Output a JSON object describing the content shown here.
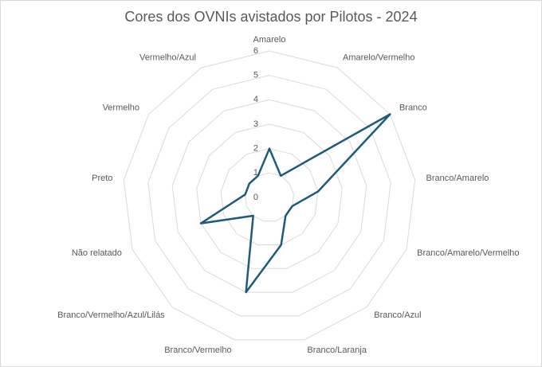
{
  "chart_data": {
    "type": "radar",
    "title": "Cores dos OVNIs avistados por Pilotos - 2024",
    "categories": [
      "Amarelo",
      "Amarelo/Vermelho",
      "Branco",
      "Branco/Amarelo",
      "Branco/Amarelo/Vermelho",
      "Branco/Azul",
      "Branco/Laranja",
      "Branco/Vermelho",
      "Branco/Vermelho/Azul/Lilás",
      "Não relatado",
      "Preto",
      "Vermelho",
      "Vermelho/Azul"
    ],
    "values": [
      2,
      1,
      6,
      2,
      1,
      1,
      2,
      4,
      1,
      3,
      1,
      1,
      1
    ],
    "color": "#1d5b79",
    "ylim": [
      0,
      6
    ],
    "yticks": [
      0,
      1,
      2,
      3,
      4,
      5,
      6
    ],
    "grid": true
  }
}
